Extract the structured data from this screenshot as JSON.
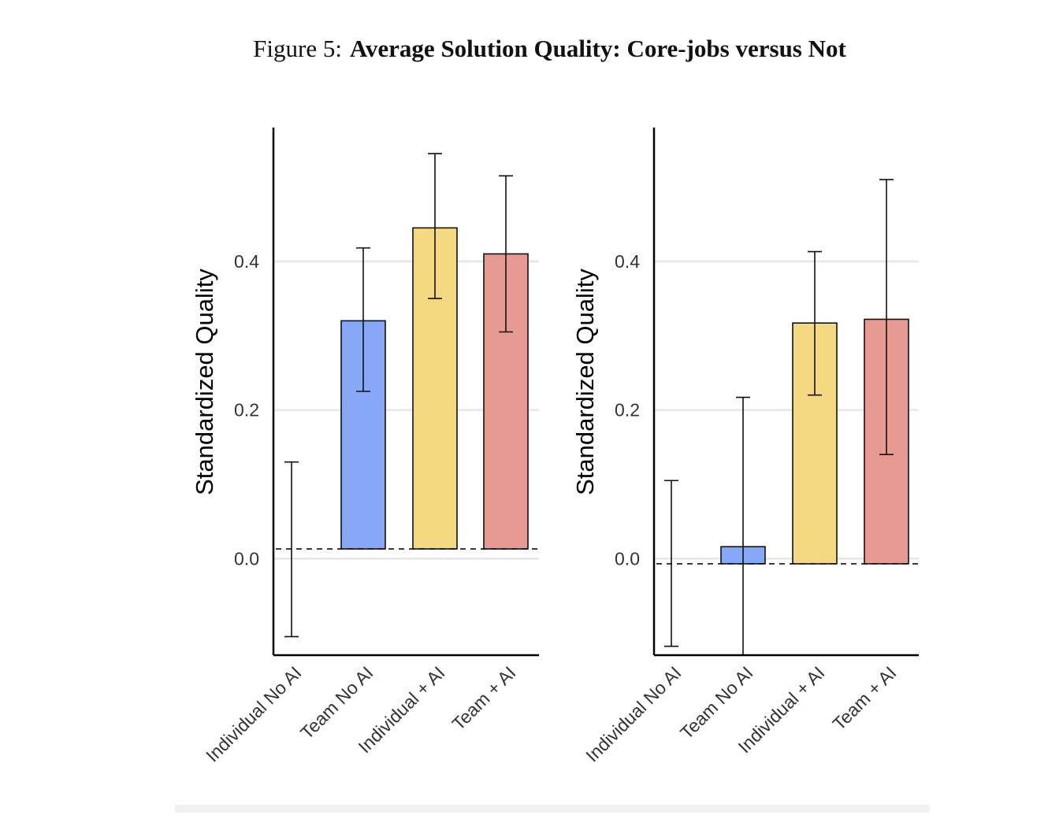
{
  "figure": {
    "prefix": "Figure 5:",
    "title": "Average Solution Quality: Core-jobs versus Not"
  },
  "colors": {
    "Individual No AI": "#ffffff",
    "Team No AI": "#86a8f6",
    "Individual + AI": "#f4d982",
    "Team + AI": "#e69a92",
    "gridline": "#e6e6e6",
    "axis": "#000000"
  },
  "chart_data": [
    {
      "type": "bar",
      "panel": "left",
      "ylabel": "Standardized Quality",
      "xlabel": "",
      "categories": [
        "Individual No AI",
        "Team No AI",
        "Individual + AI",
        "Team + AI"
      ],
      "baseline": 0.013,
      "values": [
        0.013,
        0.32,
        0.445,
        0.41
      ],
      "error_low": [
        -0.105,
        0.225,
        0.35,
        0.305
      ],
      "error_high": [
        0.13,
        0.418,
        0.545,
        0.515
      ],
      "yticks": [
        0.0,
        0.2,
        0.4
      ],
      "ytick_labels": [
        "0.0",
        "0.2",
        "0.4"
      ],
      "ylim": [
        -0.13,
        0.58
      ],
      "grid": true
    },
    {
      "type": "bar",
      "panel": "right",
      "ylabel": "Standardized Quality",
      "xlabel": "",
      "categories": [
        "Individual No AI",
        "Team No AI",
        "Individual + AI",
        "Team + AI"
      ],
      "baseline": -0.007,
      "values": [
        -0.007,
        0.016,
        0.317,
        0.322
      ],
      "error_low": [
        -0.118,
        -0.13,
        0.22,
        0.14
      ],
      "error_high": [
        0.105,
        0.217,
        0.413,
        0.51
      ],
      "yticks": [
        0.0,
        0.2,
        0.4
      ],
      "ytick_labels": [
        "0.0",
        "0.2",
        "0.4"
      ],
      "ylim": [
        -0.13,
        0.58
      ],
      "grid": true
    }
  ]
}
